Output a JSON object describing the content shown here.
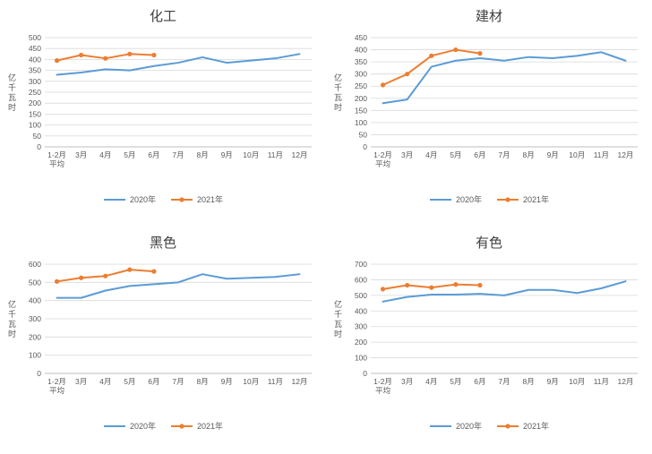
{
  "page": {
    "background": "#ffffff"
  },
  "colors": {
    "series2020": "#5B9BD5",
    "series2021": "#ED7D31",
    "grid": "#D9D9D9",
    "axis": "#BFBFBF",
    "text": "#595959",
    "title": "#404040"
  },
  "chart_data": [
    {
      "type": "line",
      "title": "化工",
      "ylabel": "亿千瓦时",
      "ylim": [
        0,
        500
      ],
      "ystep": 50,
      "grid": true,
      "legend_position": "bottom",
      "categories": [
        "1-2月\n平均",
        "3月",
        "4月",
        "5月",
        "6月",
        "7月",
        "8月",
        "9月",
        "10月",
        "11月",
        "12月"
      ],
      "series": [
        {
          "name": "2020年",
          "color": "#5B9BD5",
          "marker": false,
          "values": [
            330,
            340,
            355,
            350,
            370,
            385,
            410,
            385,
            395,
            405,
            425
          ]
        },
        {
          "name": "2021年",
          "color": "#ED7D31",
          "marker": true,
          "values": [
            395,
            420,
            405,
            425,
            420
          ]
        }
      ]
    },
    {
      "type": "line",
      "title": "建材",
      "ylabel": "亿千瓦时",
      "ylim": [
        0,
        450
      ],
      "ystep": 50,
      "grid": true,
      "legend_position": "bottom",
      "categories": [
        "1-2月\n平均",
        "3月",
        "4月",
        "5月",
        "6月",
        "7月",
        "8月",
        "9月",
        "10月",
        "11月",
        "12月"
      ],
      "series": [
        {
          "name": "2020年",
          "color": "#5B9BD5",
          "marker": false,
          "values": [
            180,
            195,
            330,
            355,
            365,
            355,
            370,
            365,
            375,
            390,
            355
          ]
        },
        {
          "name": "2021年",
          "color": "#ED7D31",
          "marker": true,
          "values": [
            255,
            300,
            375,
            400,
            385
          ]
        }
      ]
    },
    {
      "type": "line",
      "title": "黑色",
      "ylabel": "亿千瓦时",
      "ylim": [
        0,
        600
      ],
      "ystep": 100,
      "grid": true,
      "legend_position": "bottom",
      "categories": [
        "1-2月\n平均",
        "3月",
        "4月",
        "5月",
        "6月",
        "7月",
        "8月",
        "9月",
        "10月",
        "11月",
        "12月"
      ],
      "series": [
        {
          "name": "2020年",
          "color": "#5B9BD5",
          "marker": false,
          "values": [
            415,
            415,
            455,
            480,
            490,
            500,
            545,
            520,
            525,
            530,
            545
          ]
        },
        {
          "name": "2021年",
          "color": "#ED7D31",
          "marker": true,
          "values": [
            505,
            525,
            535,
            570,
            560
          ]
        }
      ]
    },
    {
      "type": "line",
      "title": "有色",
      "ylabel": "亿千瓦时",
      "ylim": [
        0,
        700
      ],
      "ystep": 100,
      "grid": true,
      "legend_position": "bottom",
      "categories": [
        "1-2月\n平均",
        "3月",
        "4月",
        "5月",
        "6月",
        "7月",
        "8月",
        "9月",
        "10月",
        "11月",
        "12月"
      ],
      "series": [
        {
          "name": "2020年",
          "color": "#5B9BD5",
          "marker": false,
          "values": [
            460,
            490,
            505,
            505,
            510,
            500,
            535,
            535,
            515,
            545,
            590
          ]
        },
        {
          "name": "2021年",
          "color": "#ED7D31",
          "marker": true,
          "values": [
            540,
            565,
            550,
            570,
            565
          ]
        }
      ]
    }
  ]
}
